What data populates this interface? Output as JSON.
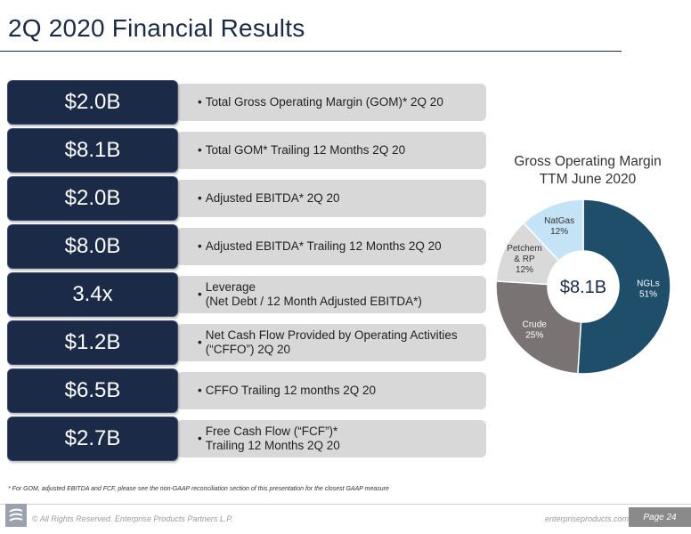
{
  "page": {
    "title": "2Q 2020 Financial Results"
  },
  "metrics": [
    {
      "value": "$2.0B",
      "bullet": "•",
      "text": "Total Gross Operating Margin (GOM)* 2Q 20"
    },
    {
      "value": "$8.1B",
      "bullet": "•",
      "text": "Total GOM* Trailing 12 Months 2Q 20"
    },
    {
      "value": "$2.0B",
      "bullet": "•",
      "text": "Adjusted EBITDA* 2Q 20"
    },
    {
      "value": "$8.0B",
      "bullet": "•",
      "text": "Adjusted EBITDA* Trailing 12 Months 2Q 20"
    },
    {
      "value": "3.4x",
      "bullet": "•",
      "text": "Leverage\n(Net Debt / 12 Month Adjusted EBITDA*)"
    },
    {
      "value": "$1.2B",
      "bullet": "•",
      "text": "Net Cash Flow Provided by Operating Activities\n(“CFFO”) 2Q 20"
    },
    {
      "value": "$6.5B",
      "bullet": "•",
      "text": "CFFO Trailing 12 months 2Q 20"
    },
    {
      "value": "$2.7B",
      "bullet": "•",
      "text": "Free Cash Flow (“FCF”)*\nTrailing 12 Months 2Q 20"
    }
  ],
  "chart_data": {
    "type": "pie",
    "title": "Gross Operating Margin",
    "subtitle": "TTM June 2020",
    "center_label": "$8.1B",
    "series": [
      {
        "name": "NGLs",
        "label": "51%",
        "value": 51,
        "color": "#1f4e6b",
        "text_color": "#ffffff"
      },
      {
        "name": "Crude",
        "label": "25%",
        "value": 25,
        "color": "#797473",
        "text_color": "#ffffff"
      },
      {
        "name": "Petchem\n& RP",
        "label": "12%",
        "value": 12,
        "color": "#d9d9d9",
        "text_color": "#333333"
      },
      {
        "name": "NatGas",
        "label": "12%",
        "value": 12,
        "color": "#c5e3f6",
        "text_color": "#333333"
      }
    ]
  },
  "footer": {
    "footnote": "* For GOM, adjusted EBITDA and FCF, please see the non-GAAP reconciliation section of this presentation for the closest GAAP measure",
    "copyright": "© All Rights Reserved. Enterprise Products Partners L.P.",
    "website": "enterpriseproducts.com",
    "page_label": "Page 24"
  }
}
